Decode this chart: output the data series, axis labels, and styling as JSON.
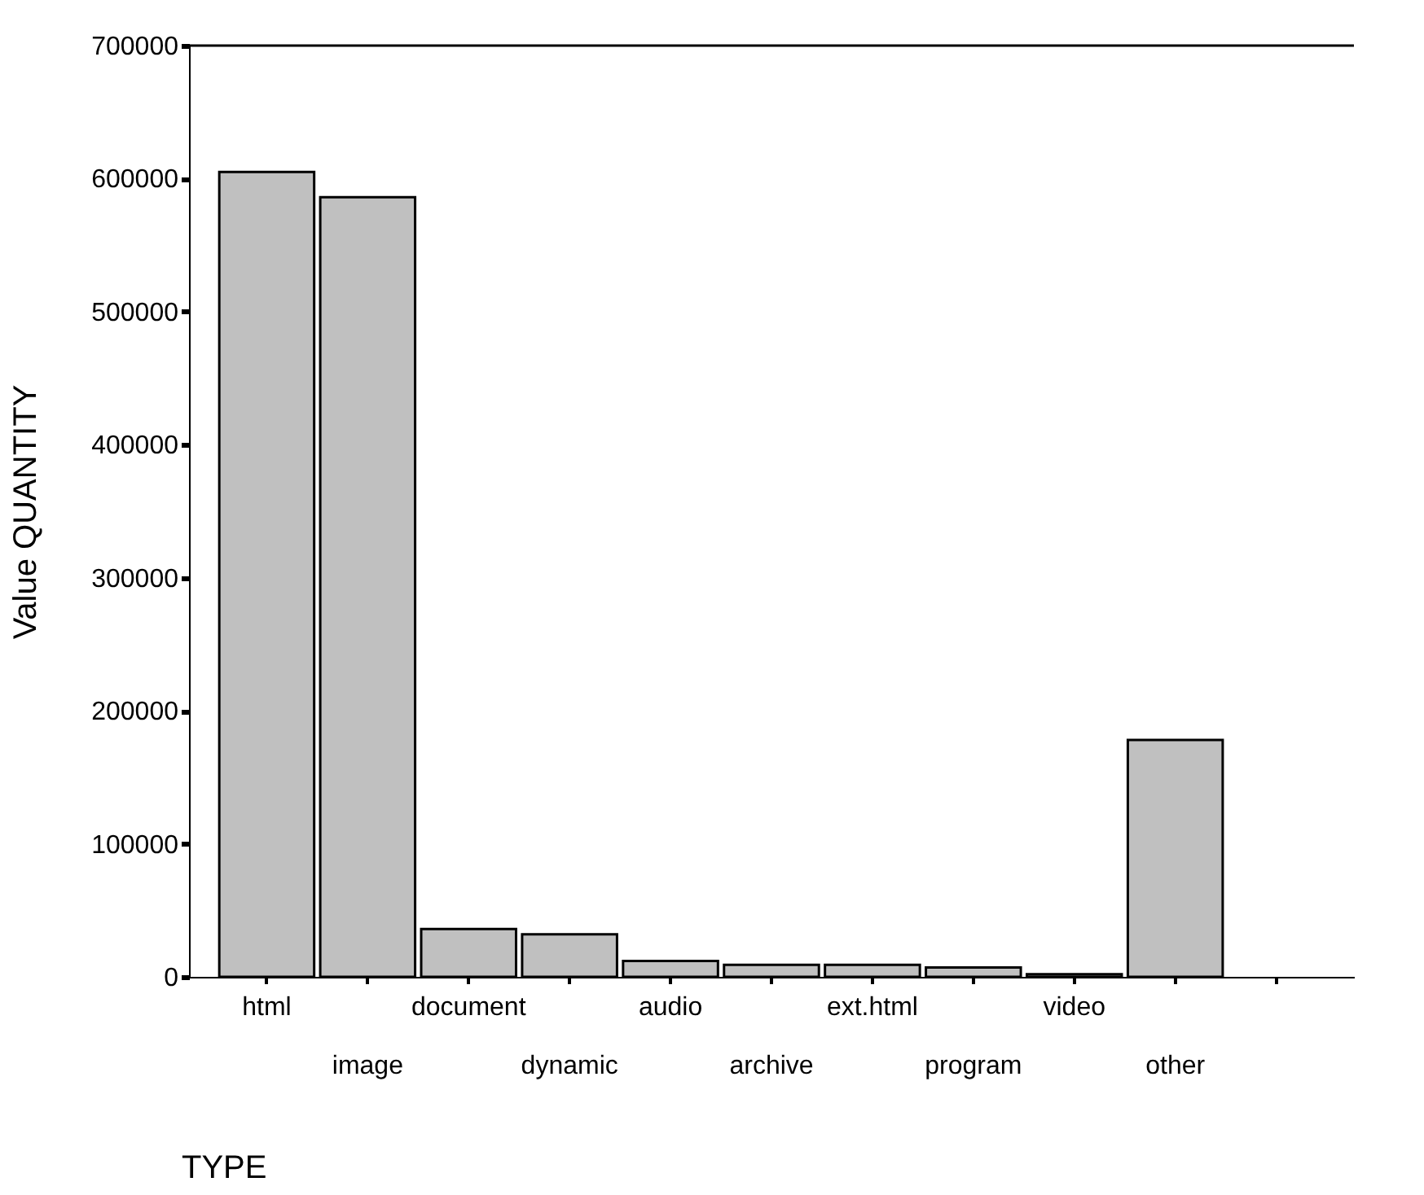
{
  "chart_data": {
    "type": "bar",
    "xlabel": "TYPE",
    "ylabel": "Value QUANTITY",
    "categories": [
      "html",
      "image",
      "document",
      "dynamic",
      "audio",
      "archive",
      "ext.html",
      "program",
      "video",
      "other",
      null
    ],
    "values": [
      605000,
      586000,
      36000,
      32000,
      12000,
      9000,
      9000,
      7000,
      2000,
      178000,
      null
    ],
    "color": "#c0c0c0",
    "ylim": [
      0,
      700000
    ],
    "yticks": [
      0,
      100000,
      200000,
      300000,
      400000,
      500000,
      600000,
      700000
    ],
    "grid": false
  }
}
